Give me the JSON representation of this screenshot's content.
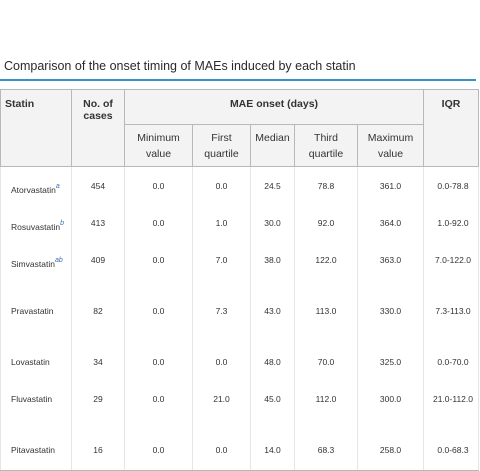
{
  "caption": "Comparison of the onset timing of MAEs induced by each statin",
  "headers": {
    "statin": "Statin",
    "cases": "No. of cases",
    "onset_group": "MAE onset (days)",
    "iqr": "IQR",
    "min": "Minimum value",
    "q1": "First quartile",
    "median": "Median",
    "q3": "Third quartile",
    "max": "Maximum value"
  },
  "rows": [
    {
      "name": "Atorvastatin",
      "sup": "a",
      "cases": "454",
      "min": "0.0",
      "q1": "0.0",
      "median": "24.5",
      "q3": "78.8",
      "max": "361.0",
      "iqr": "0.0-78.8"
    },
    {
      "name": "Rosuvastatin",
      "sup": "b",
      "cases": "413",
      "min": "0.0",
      "q1": "1.0",
      "median": "30.0",
      "q3": "92.0",
      "max": "364.0",
      "iqr": "1.0-92.0"
    },
    {
      "name": "Simvastatin",
      "sup": "ab",
      "cases": "409",
      "min": "0.0",
      "q1": "7.0",
      "median": "38.0",
      "q3": "122.0",
      "max": "363.0",
      "iqr": "7.0-122.0"
    },
    {
      "name": "Pravastatin",
      "sup": "",
      "cases": "82",
      "min": "0.0",
      "q1": "7.3",
      "median": "43.0",
      "q3": "113.0",
      "max": "330.0",
      "iqr": "7.3-113.0"
    },
    {
      "name": "Lovastatin",
      "sup": "",
      "cases": "34",
      "min": "0.0",
      "q1": "0.0",
      "median": "48.0",
      "q3": "70.0",
      "max": "325.0",
      "iqr": "0.0-70.0"
    },
    {
      "name": "Fluvastatin",
      "sup": "",
      "cases": "29",
      "min": "0.0",
      "q1": "21.0",
      "median": "45.0",
      "q3": "112.0",
      "max": "300.0",
      "iqr": "21.0-112.0"
    },
    {
      "name": "Pitavastatin",
      "sup": "",
      "cases": "16",
      "min": "0.0",
      "q1": "0.0",
      "median": "14.0",
      "q3": "68.3",
      "max": "258.0",
      "iqr": "0.0-68.3"
    }
  ]
}
